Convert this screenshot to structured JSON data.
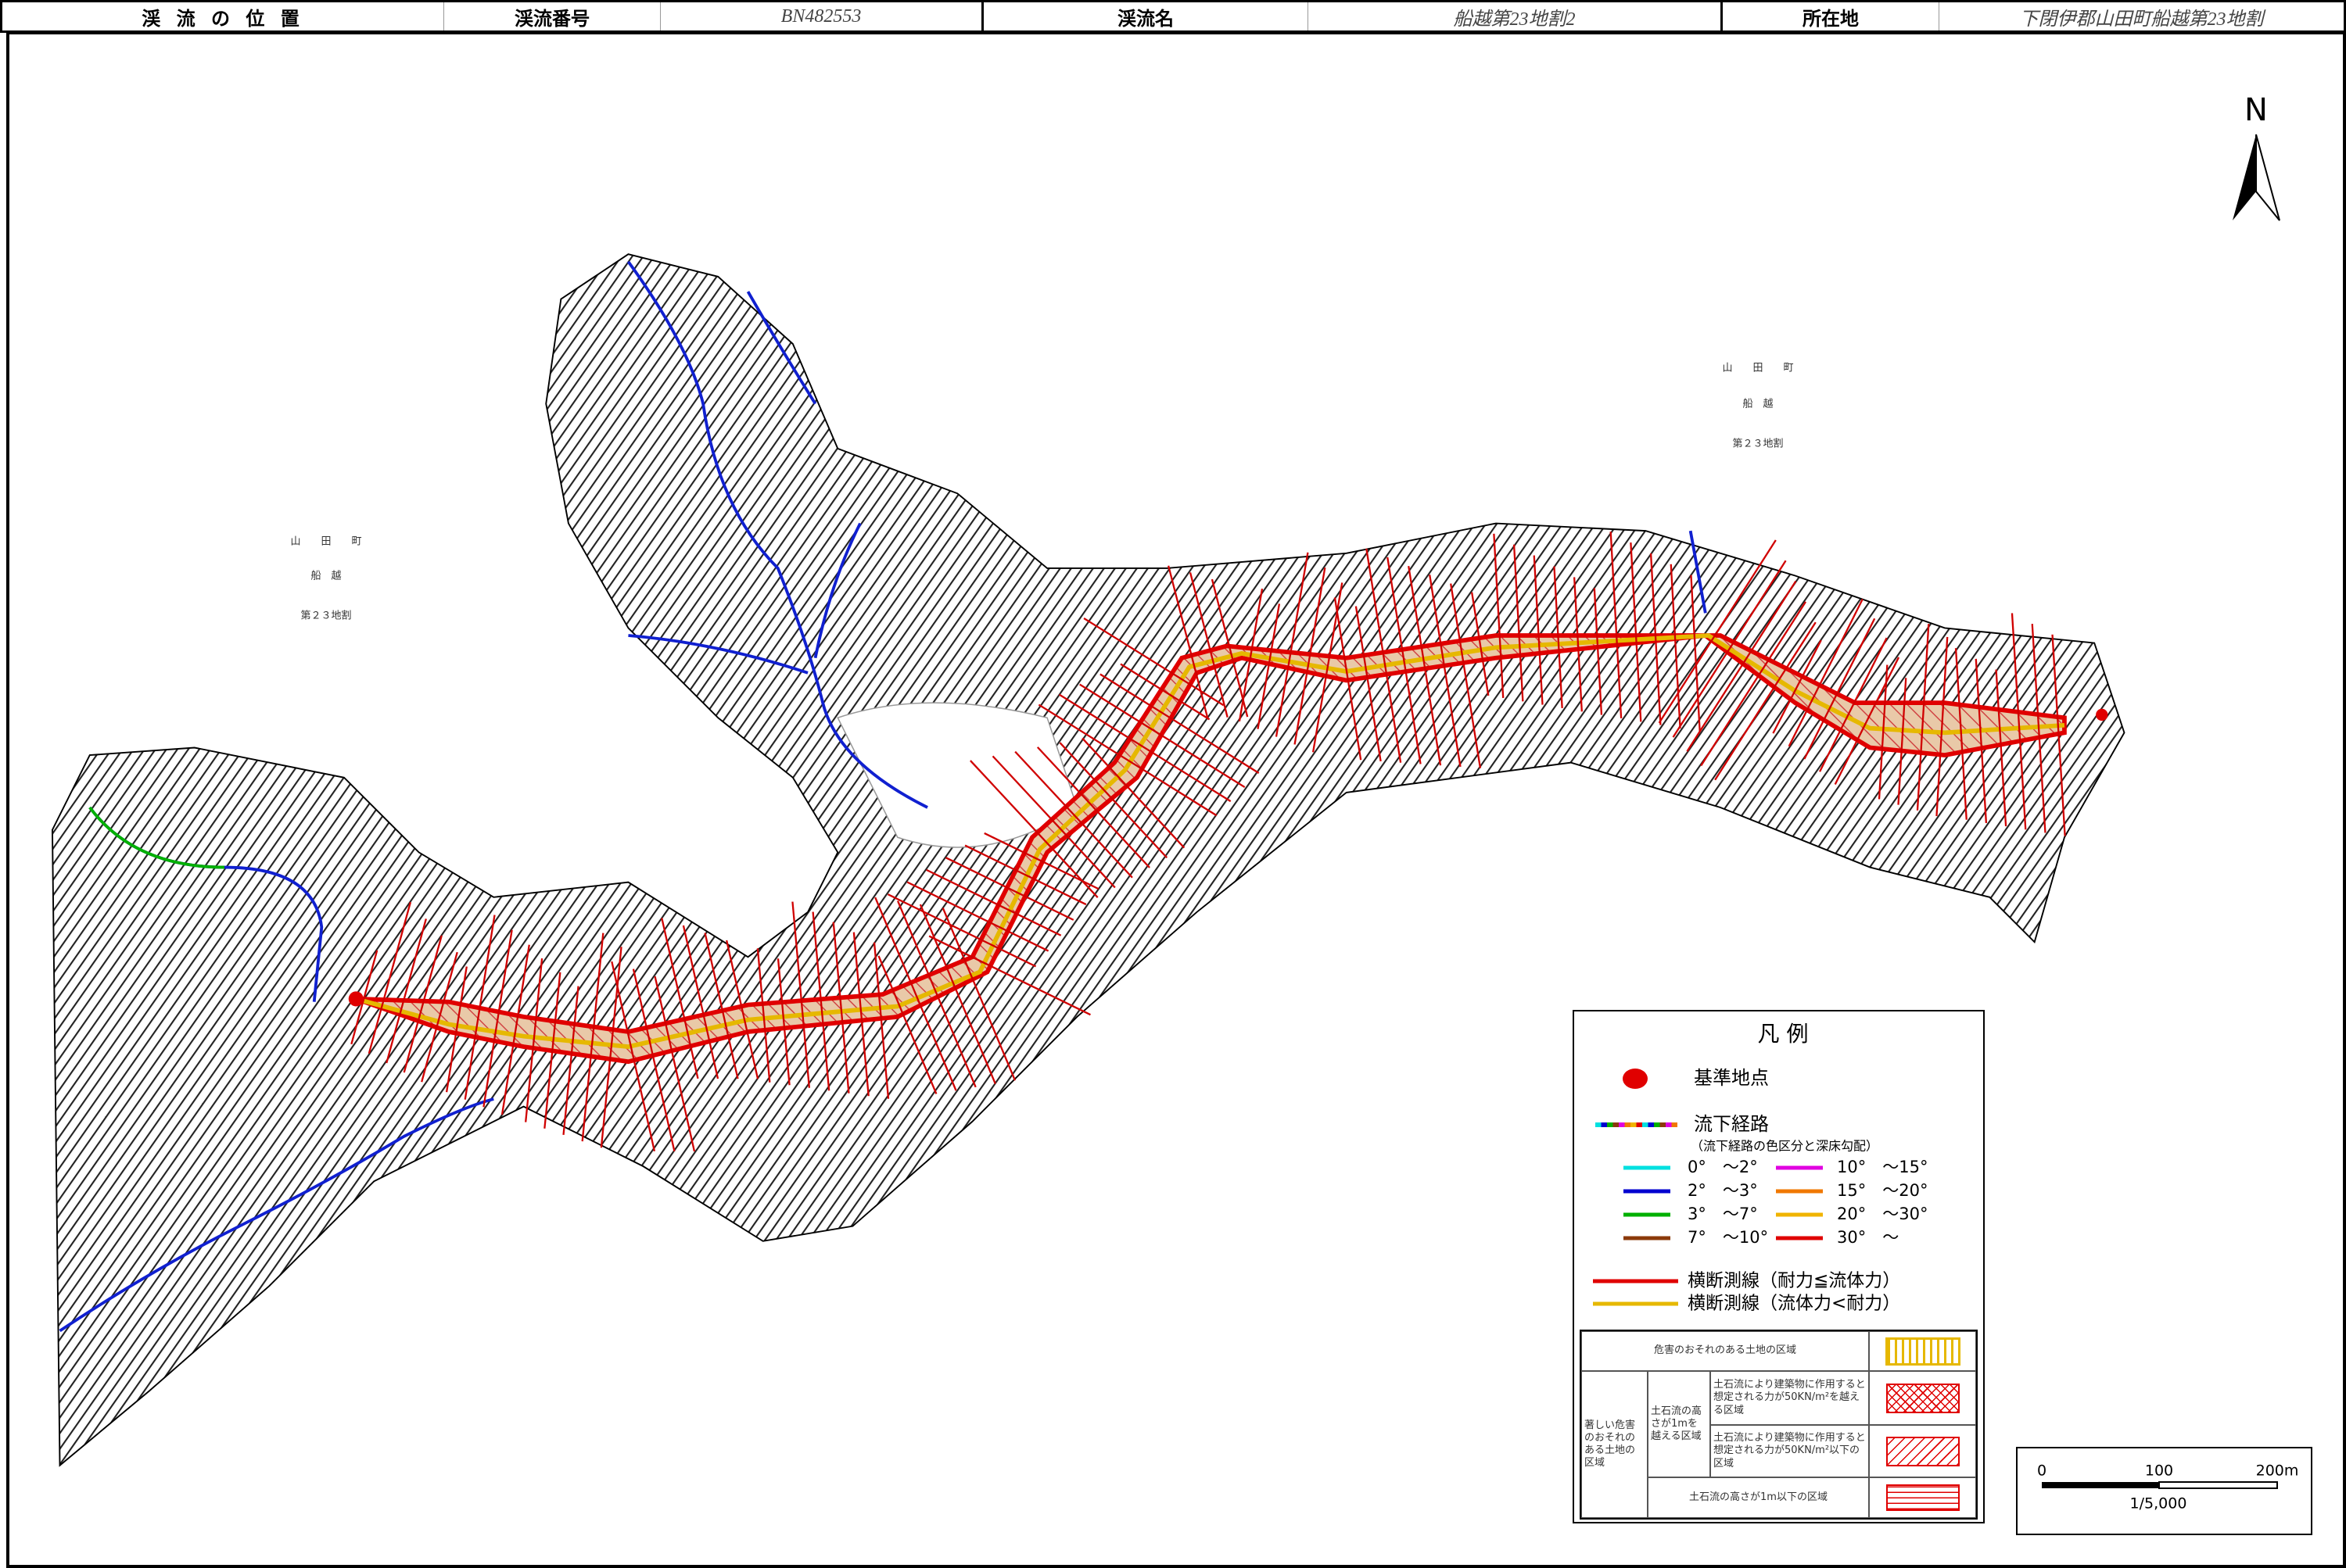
{
  "header": {
    "location_label": "渓 流 の 位 置",
    "number_label": "渓流番号",
    "number": "BN482553",
    "name_label": "渓流名",
    "name": "船越第23地割2",
    "address_label": "所在地",
    "address": "下閉伊郡山田町船越第23地割"
  },
  "north": "N",
  "map_labels": [
    {
      "town": "山　　田　　町",
      "district": "船　越",
      "lot": "第２３地割"
    },
    {
      "town": "山　　田　　町",
      "district": "船　越",
      "lot": "第２３地割"
    }
  ],
  "legend": {
    "title": "凡 例",
    "base_point": "基準地点",
    "flow_path": "流下経路",
    "flow_path_note": "（流下経路の色区分と深床勾配）",
    "slopes": [
      {
        "label": "0°　～2°",
        "color": "#00e0e0"
      },
      {
        "label": "2°　～3°",
        "color": "#0000d0"
      },
      {
        "label": "3°　～7°",
        "color": "#00b000"
      },
      {
        "label": "7°　～10°",
        "color": "#8b3a0a"
      },
      {
        "label": "10°　～15°",
        "color": "#e000e0"
      },
      {
        "label": "15°　～20°",
        "color": "#f07800"
      },
      {
        "label": "20°　～30°",
        "color": "#f0b400"
      },
      {
        "label": "30°　～",
        "color": "#e00000"
      }
    ],
    "sections": [
      {
        "label": "横断測線（耐力≦流体力）",
        "color": "#e00000"
      },
      {
        "label": "横断測線（流体力<耐力）",
        "color": "#e6b800"
      }
    ],
    "table": {
      "warning_area": "危害のおそれのある土地の区域",
      "special_area": "著しい危害のおそれのある土地の区域",
      "over_1m": "土石流の高さが1mを越える区域",
      "force_over": "土石流により建築物に作用すると想定される力が50KN/m²を越える区域",
      "force_under": "土石流により建築物に作用すると想定される力が50KN/m²以下の区域",
      "under_1m": "土石流の高さが1m以下の区域"
    }
  },
  "scale": {
    "ticks": [
      "0",
      "100",
      "200m"
    ],
    "ratio": "1/5,000"
  }
}
